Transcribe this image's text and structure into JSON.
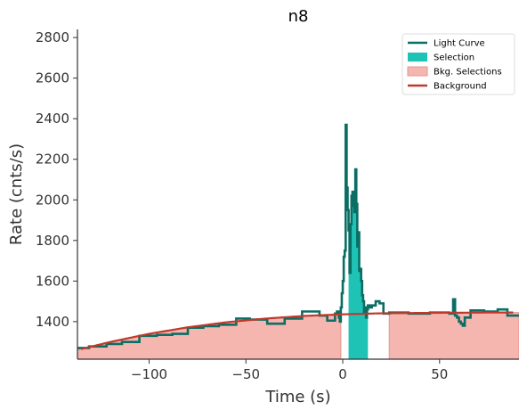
{
  "chart_data": {
    "type": "line",
    "title": "n8",
    "xlabel": "Time (s)",
    "ylabel": "Rate (cnts/s)",
    "xlim": [
      -137,
      91
    ],
    "ylim": [
      1215,
      2840
    ],
    "xticks": [
      -100,
      -50,
      0,
      50
    ],
    "yticks": [
      1400,
      1600,
      1800,
      2000,
      2200,
      2400,
      2600,
      2800
    ],
    "xtick_labels": [
      "−100",
      "−50",
      "0",
      "50"
    ],
    "ytick_labels": [
      "1400",
      "1600",
      "1800",
      "2000",
      "2200",
      "2400",
      "2600",
      "2800"
    ],
    "legend": {
      "position": "top-right",
      "entries": [
        {
          "label": "Light Curve",
          "kind": "line",
          "color": "#0a6e64"
        },
        {
          "label": "Selection",
          "kind": "patch",
          "color": "#1ec3b6"
        },
        {
          "label": "Bkg. Selections",
          "kind": "patch",
          "color": "#f5b6b0"
        },
        {
          "label": "Background",
          "kind": "line",
          "color": "#c0392b"
        }
      ]
    },
    "colors": {
      "light_curve": "#0a6e64",
      "selection": "#1ec3b6",
      "bkg_selection": "#f5b6b0",
      "bkg_selection_edge": "#e8958c",
      "background": "#c0392b"
    },
    "selection": [
      {
        "start": 3,
        "end": 13
      }
    ],
    "bkg_selections": [
      {
        "start": -137,
        "end": -1
      },
      {
        "start": 24,
        "end": 91
      }
    ],
    "background_fit": {
      "x": [
        -135,
        -120,
        -100,
        -80,
        -60,
        -40,
        -20,
        0,
        20,
        40,
        60,
        80,
        88
      ],
      "y": [
        1265,
        1300,
        1340,
        1372,
        1397,
        1415,
        1428,
        1436,
        1441,
        1443,
        1444,
        1445,
        1445
      ]
    },
    "light_curve": {
      "x": [
        -137,
        -131,
        -122,
        -114,
        -105,
        -96,
        -88,
        -80,
        -72,
        -64,
        -55,
        -48,
        -39,
        -30,
        -21,
        -12,
        -8,
        -4,
        -3,
        -2,
        -1.5,
        -1,
        -0.5,
        0,
        0.5,
        1,
        1.5,
        2,
        2.5,
        3,
        3.5,
        4,
        4.5,
        5,
        5.5,
        6,
        6.5,
        7,
        7.5,
        8,
        8.5,
        9,
        9.5,
        10,
        10.5,
        11,
        11.5,
        12,
        12.5,
        13,
        14,
        15,
        17,
        19,
        21,
        24,
        34,
        45,
        55,
        57,
        58,
        59,
        60,
        61,
        62,
        63,
        66,
        73,
        80,
        85,
        91
      ],
      "y": [
        1270,
        1278,
        1290,
        1300,
        1330,
        1335,
        1340,
        1370,
        1378,
        1385,
        1415,
        1410,
        1390,
        1415,
        1450,
        1430,
        1405,
        1440,
        1450,
        1420,
        1400,
        1470,
        1540,
        1600,
        1720,
        1750,
        2370,
        2060,
        1950,
        1850,
        1640,
        1880,
        2020,
        2040,
        1970,
        1940,
        2150,
        1980,
        1770,
        1840,
        1650,
        1660,
        1600,
        1530,
        1500,
        1440,
        1470,
        1420,
        1460,
        1480,
        1470,
        1480,
        1500,
        1490,
        1440,
        1445,
        1440,
        1445,
        1440,
        1510,
        1430,
        1420,
        1400,
        1390,
        1380,
        1420,
        1455,
        1450,
        1460,
        1430,
        1430
      ]
    }
  }
}
